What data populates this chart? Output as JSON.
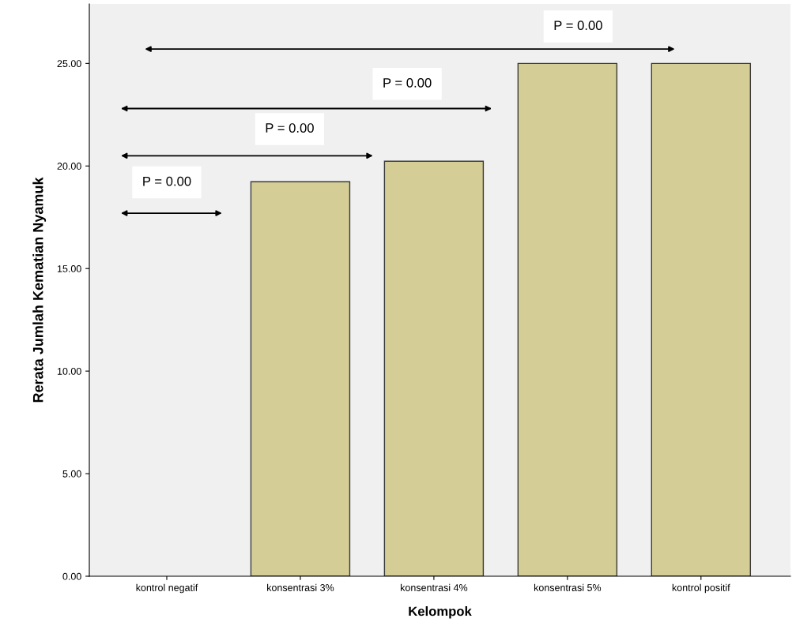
{
  "chart_data": {
    "type": "bar",
    "xlabel": "Kelompok",
    "ylabel": "Rerata Jumlah Kematian Nyamuk",
    "categories": [
      "kontrol negatif",
      "konsentrasi 3%",
      "konsentrasi 4%",
      "konsentrasi 5%",
      "kontrol positif"
    ],
    "values": [
      0,
      19.23,
      20.23,
      25,
      25
    ],
    "color": "#d4cd96",
    "ylim": [
      0,
      27.9
    ],
    "yticks": [
      {
        "value": 0,
        "label": "0.00"
      },
      {
        "value": 5,
        "label": "5.00"
      },
      {
        "value": 10,
        "label": "10.00"
      },
      {
        "value": 15,
        "label": "15.00"
      },
      {
        "value": 20,
        "label": "20.00"
      },
      {
        "value": 25,
        "label": "25.00"
      }
    ],
    "annotations": [
      "P = 0.00",
      "P = 0.00",
      "P = 0.00",
      "P = 0.00"
    ],
    "grid": false
  }
}
